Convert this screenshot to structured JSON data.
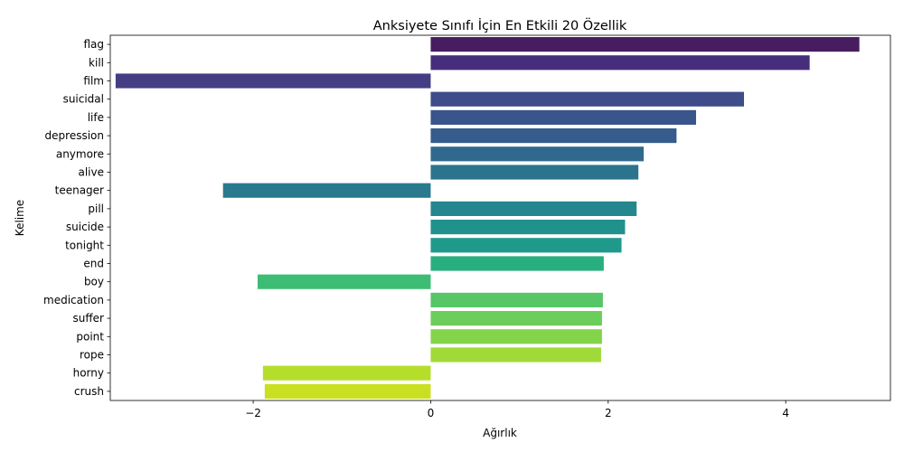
{
  "chart_data": {
    "type": "bar",
    "orientation": "horizontal",
    "title": "Anksiyete Sınıfı İçin En Etkili 20 Özellik",
    "xlabel": "Ağırlık",
    "ylabel": "Kelime",
    "xlim": [
      -3.61,
      5.18
    ],
    "xticks": [
      -2,
      0,
      2,
      4
    ],
    "xtick_labels": [
      "−2",
      "0",
      "2",
      "4"
    ],
    "grid": false,
    "palette": "viridis",
    "categories": [
      "flag",
      "kill",
      "film",
      "suicidal",
      "life",
      "depression",
      "anymore",
      "alive",
      "teenager",
      "pill",
      "suicide",
      "tonight",
      "end",
      "boy",
      "medication",
      "suffer",
      "point",
      "rope",
      "horny",
      "crush"
    ],
    "values": [
      4.83,
      4.27,
      -3.55,
      3.53,
      2.99,
      2.77,
      2.4,
      2.34,
      -2.34,
      2.32,
      2.19,
      2.15,
      1.95,
      -1.95,
      1.94,
      1.93,
      1.93,
      1.92,
      -1.89,
      -1.87
    ],
    "colors": [
      "#481d5f",
      "#472e7c",
      "#433d84",
      "#3e4c8a",
      "#3a548c",
      "#365c8d",
      "#30698e",
      "#2c738e",
      "#297a8e",
      "#24868e",
      "#21918c",
      "#1f9a8a",
      "#29af7f",
      "#3dbc74",
      "#56c667",
      "#6ccd5a",
      "#84d44b",
      "#a0da39",
      "#b5de2b",
      "#c8e020"
    ]
  }
}
